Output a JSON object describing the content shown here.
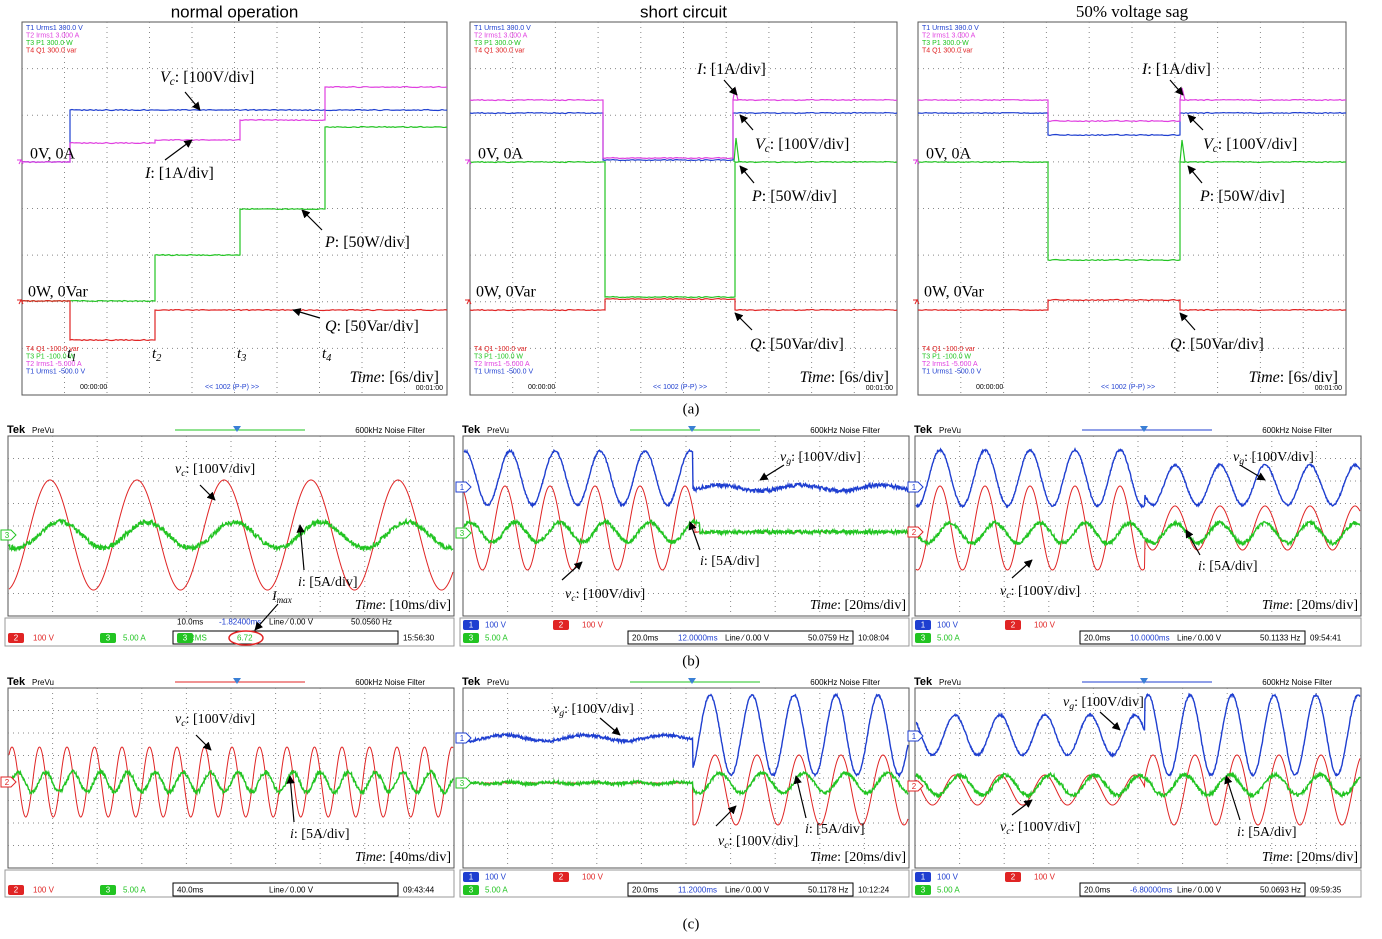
{
  "row_a": {
    "caption": "(a)",
    "panels": [
      {
        "title": "normal operation",
        "header": [
          "T1 Urms1  300.0 V",
          "T2 Irms1  3.000 A",
          "T3 P1  300.0 W",
          "T4 Q1  300.0 var"
        ],
        "footer": [
          "T4 Q1  -100.0 var",
          "T3 P1  -100.0 W",
          "T2 Irms1  -5.000 A",
          "T1 Urms1  -500.0 V"
        ],
        "start": "00:00:00",
        "zoom": "<< 1002 (P-P) >>",
        "end": "00:01:00",
        "levels": [
          "0V, 0A",
          "0W, 0Var"
        ],
        "annotations": [
          {
            "symbol": "V",
            "sub": "c",
            "text": ": [100V/div]"
          },
          {
            "symbol": "I",
            "text": ": [1A/div]"
          },
          {
            "symbol": "P",
            "text": ": [50W/div]"
          },
          {
            "symbol": "Q",
            "text": ": [50Var/div]"
          }
        ],
        "instants": [
          {
            "symbol": "t",
            "sub": "1"
          },
          {
            "symbol": "t",
            "sub": "2"
          },
          {
            "symbol": "t",
            "sub": "3"
          },
          {
            "symbol": "t",
            "sub": "4"
          }
        ],
        "time": {
          "symbol": "Time",
          "text": ": [6s/div]"
        }
      },
      {
        "title": "short circuit",
        "header": [
          "T1 Urms1  300.0 V",
          "T2 Irms1  3.000 A",
          "T3 P1  300.0 W",
          "T4 Q1  300.0 var"
        ],
        "footer": [
          "T4 Q1  -100.0 var",
          "T3 P1  -100.0 W",
          "T2 Irms1  -5.000 A",
          "T1 Urms1  -500.0 V"
        ],
        "start": "00:00:00",
        "zoom": "<< 1002 (P-P) >>",
        "end": "00:01:00",
        "levels": [
          "0V, 0A",
          "0W, 0Var"
        ],
        "annotations": [
          {
            "symbol": "I",
            "text": ": [1A/div]"
          },
          {
            "symbol": "V",
            "sub": "c",
            "text": ": [100V/div]"
          },
          {
            "symbol": "P",
            "text": ": [50W/div]"
          },
          {
            "symbol": "Q",
            "text": ": [50Var/div]"
          }
        ],
        "time": {
          "symbol": "Time",
          "text": ": [6s/div]"
        }
      },
      {
        "title": "50% voltage sag",
        "header": [
          "T1 Urms1  300.0 V",
          "T2 Irms1  3.000 A",
          "T3 P1  300.0 W",
          "T4 Q1  300.0 var"
        ],
        "footer": [
          "T4 Q1  -100.0 var",
          "T3 P1  -100.0 W",
          "T2 Irms1  -5.000 A",
          "T1 Urms1  -500.0 V"
        ],
        "start": "00:00:00",
        "zoom": "<< 1002 (P-P) >>",
        "end": "00:01:00",
        "levels": [
          "0V, 0A",
          "0W, 0Var"
        ],
        "annotations": [
          {
            "symbol": "I",
            "text": ": [1A/div]"
          },
          {
            "symbol": "V",
            "sub": "c",
            "text": ": [100V/div]"
          },
          {
            "symbol": "P",
            "text": ": [50W/div]"
          },
          {
            "symbol": "Q",
            "text": ": [50Var/div]"
          }
        ],
        "time": {
          "symbol": "Time",
          "text": ": [6s/div]"
        }
      }
    ]
  },
  "row_b": {
    "caption": "(b)",
    "panels": [
      {
        "brand": "Tek",
        "mode": "PreVu",
        "filter": "600kHz  Noise Filter",
        "channels": [
          "3"
        ],
        "annotations": [
          {
            "symbol": "v",
            "sub": "c",
            "text": ": [100V/div]"
          },
          {
            "symbol": "i",
            "text": ": [5A/div]"
          }
        ],
        "peak": {
          "symbol": "I",
          "sub": "max"
        },
        "time": {
          "symbol": "Time",
          "text": ": [10ms/div]"
        },
        "status": [
          "2",
          "100 V",
          "3",
          "5.00 A",
          "10.0ms",
          "-1.82400ms",
          "Line ⁄ 0.00 V",
          "50.0560 Hz",
          "15:56:30",
          "3",
          "RMS",
          "6.72"
        ]
      },
      {
        "brand": "Tek",
        "mode": "PreVu",
        "filter": "600kHz  Noise Filter",
        "channels": [
          "1",
          "3"
        ],
        "annotations": [
          {
            "symbol": "v",
            "sub": "g",
            "text": ": [100V/div]"
          },
          {
            "symbol": "i",
            "text": ": [5A/div]"
          },
          {
            "symbol": "v",
            "sub": "c",
            "text": ": [100V/div]"
          }
        ],
        "time": {
          "symbol": "Time",
          "text": ": [20ms/div]"
        },
        "status": [
          "1",
          "100 V",
          "2",
          "100 V",
          "3",
          "5.00 A",
          "20.0ms",
          "12.0000ms",
          "Line ⁄ 0.00 V",
          "50.0759 Hz",
          "10:08:04"
        ]
      },
      {
        "brand": "Tek",
        "mode": "PreVu",
        "filter": "600kHz  Noise Filter",
        "channels": [
          "1",
          "2"
        ],
        "annotations": [
          {
            "symbol": "v",
            "sub": "g",
            "text": ": [100V/div]"
          },
          {
            "symbol": "i",
            "text": ": [5A/div]"
          },
          {
            "symbol": "v",
            "sub": "c",
            "text": ": [100V/div]"
          }
        ],
        "time": {
          "symbol": "Time",
          "text": ": [20ms/div]"
        },
        "status": [
          "1",
          "100 V",
          "2",
          "100 V",
          "3",
          "5.00 A",
          "20.0ms",
          "10.0000ms",
          "Line ⁄ 0.00 V",
          "50.1133 Hz",
          "09:54:41"
        ]
      }
    ]
  },
  "row_c": {
    "caption": "(c)",
    "panels": [
      {
        "brand": "Tek",
        "mode": "PreVu",
        "filter": "600kHz  Noise Filter",
        "channels": [
          "2"
        ],
        "annotations": [
          {
            "symbol": "v",
            "sub": "c",
            "text": ": [100V/div]"
          },
          {
            "symbol": "i",
            "text": ": [5A/div]"
          }
        ],
        "time": {
          "symbol": "Time",
          "text": ": [40ms/div]"
        },
        "status": [
          "2",
          "100 V",
          "3",
          "5.00 A",
          "40.0ms",
          "Line ⁄ 0.00 V",
          "09:43:44"
        ]
      },
      {
        "brand": "Tek",
        "mode": "PreVu",
        "filter": "600kHz  Noise Filter",
        "channels": [
          "1",
          "3"
        ],
        "annotations": [
          {
            "symbol": "v",
            "sub": "g",
            "text": ": [100V/div]"
          },
          {
            "symbol": "i",
            "text": ": [5A/div]"
          },
          {
            "symbol": "v",
            "sub": "c",
            "text": ": [100V/div]"
          }
        ],
        "time": {
          "symbol": "Time",
          "text": ": [20ms/div]"
        },
        "status": [
          "1",
          "100 V",
          "2",
          "100 V",
          "3",
          "5.00 A",
          "20.0ms",
          "11.2000ms",
          "Line ⁄ 0.00 V",
          "50.1178 Hz",
          "10:12:24"
        ]
      },
      {
        "brand": "Tek",
        "mode": "PreVu",
        "filter": "600kHz  Noise Filter",
        "channels": [
          "1",
          "2"
        ],
        "annotations": [
          {
            "symbol": "v",
            "sub": "g",
            "text": ": [100V/div]"
          },
          {
            "symbol": "i",
            "text": ": [5A/div]"
          },
          {
            "symbol": "v",
            "sub": "c",
            "text": ": [100V/div]"
          }
        ],
        "time": {
          "symbol": "Time",
          "text": ": [20ms/div]"
        },
        "status": [
          "1",
          "100 V",
          "2",
          "100 V",
          "3",
          "5.00 A",
          "20.0ms",
          "-6.80000ms",
          "Line ⁄ 0.00 V",
          "50.0693 Hz",
          "09:59:35"
        ]
      }
    ]
  }
}
